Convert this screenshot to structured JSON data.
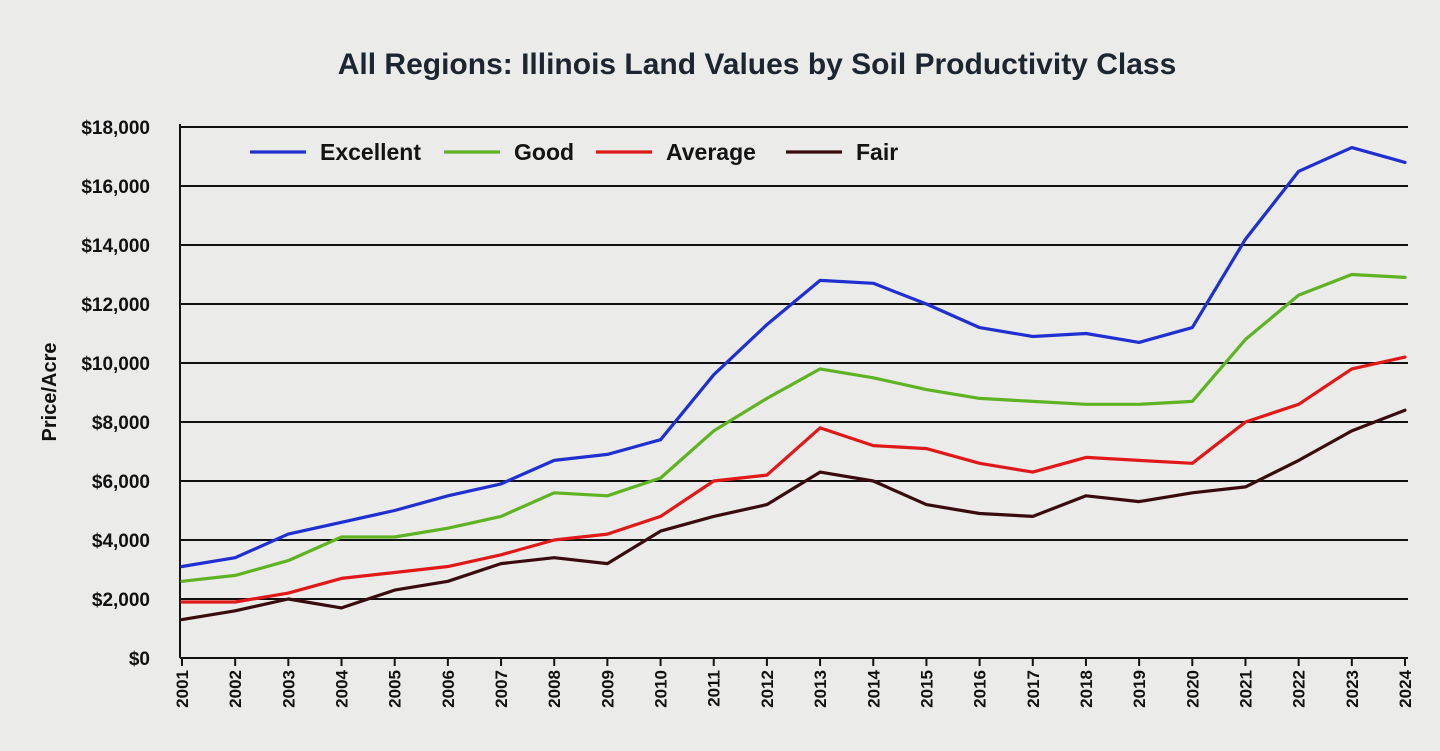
{
  "chart_data": {
    "type": "line",
    "title": "All Regions: Illinois Land Values by Soil Productivity Class",
    "xlabel": "",
    "ylabel": "Price/Acre",
    "ylim": [
      0,
      18000
    ],
    "grid": true,
    "legend_position": "top-left",
    "yticks": [
      "$0",
      "$2,000",
      "$4,000",
      "$6,000",
      "$8,000",
      "$10,000",
      "$12,000",
      "$14,000",
      "$16,000",
      "$18,000"
    ],
    "categories": [
      "2001",
      "2002",
      "2003",
      "2004",
      "2005",
      "2006",
      "2007",
      "2008",
      "2009",
      "2010",
      "2011",
      "2012",
      "2013",
      "2014",
      "2015",
      "2016",
      "2017",
      "2018",
      "2019",
      "2020",
      "2021",
      "2022",
      "2023",
      "2024"
    ],
    "series": [
      {
        "name": "Excellent",
        "color": "#1f2fd0",
        "values": [
          3100,
          3400,
          4200,
          4600,
          5000,
          5500,
          5900,
          6700,
          6900,
          7400,
          9600,
          11300,
          12800,
          12700,
          12000,
          11200,
          10900,
          11000,
          10700,
          11200,
          14200,
          16500,
          17300,
          16800
        ]
      },
      {
        "name": "Good",
        "color": "#5fb323",
        "values": [
          2600,
          2800,
          3300,
          4100,
          4100,
          4400,
          4800,
          5600,
          5500,
          6100,
          7700,
          8800,
          9800,
          9500,
          9100,
          8800,
          8700,
          8600,
          8600,
          8700,
          10800,
          12300,
          13000,
          12900
        ]
      },
      {
        "name": "Average",
        "color": "#e01818",
        "values": [
          1900,
          1900,
          2200,
          2700,
          2900,
          3100,
          3500,
          4000,
          4200,
          4800,
          6000,
          6200,
          7800,
          7200,
          7100,
          6600,
          6300,
          6800,
          6700,
          6600,
          8000,
          8600,
          9800,
          10200
        ]
      },
      {
        "name": "Fair",
        "color": "#3a0b0e",
        "values": [
          1300,
          1600,
          2000,
          1700,
          2300,
          2600,
          3200,
          3400,
          3200,
          4300,
          4800,
          5200,
          6300,
          6000,
          5200,
          4900,
          4800,
          5500,
          5300,
          5600,
          5800,
          6700,
          7700,
          8400
        ]
      }
    ]
  }
}
